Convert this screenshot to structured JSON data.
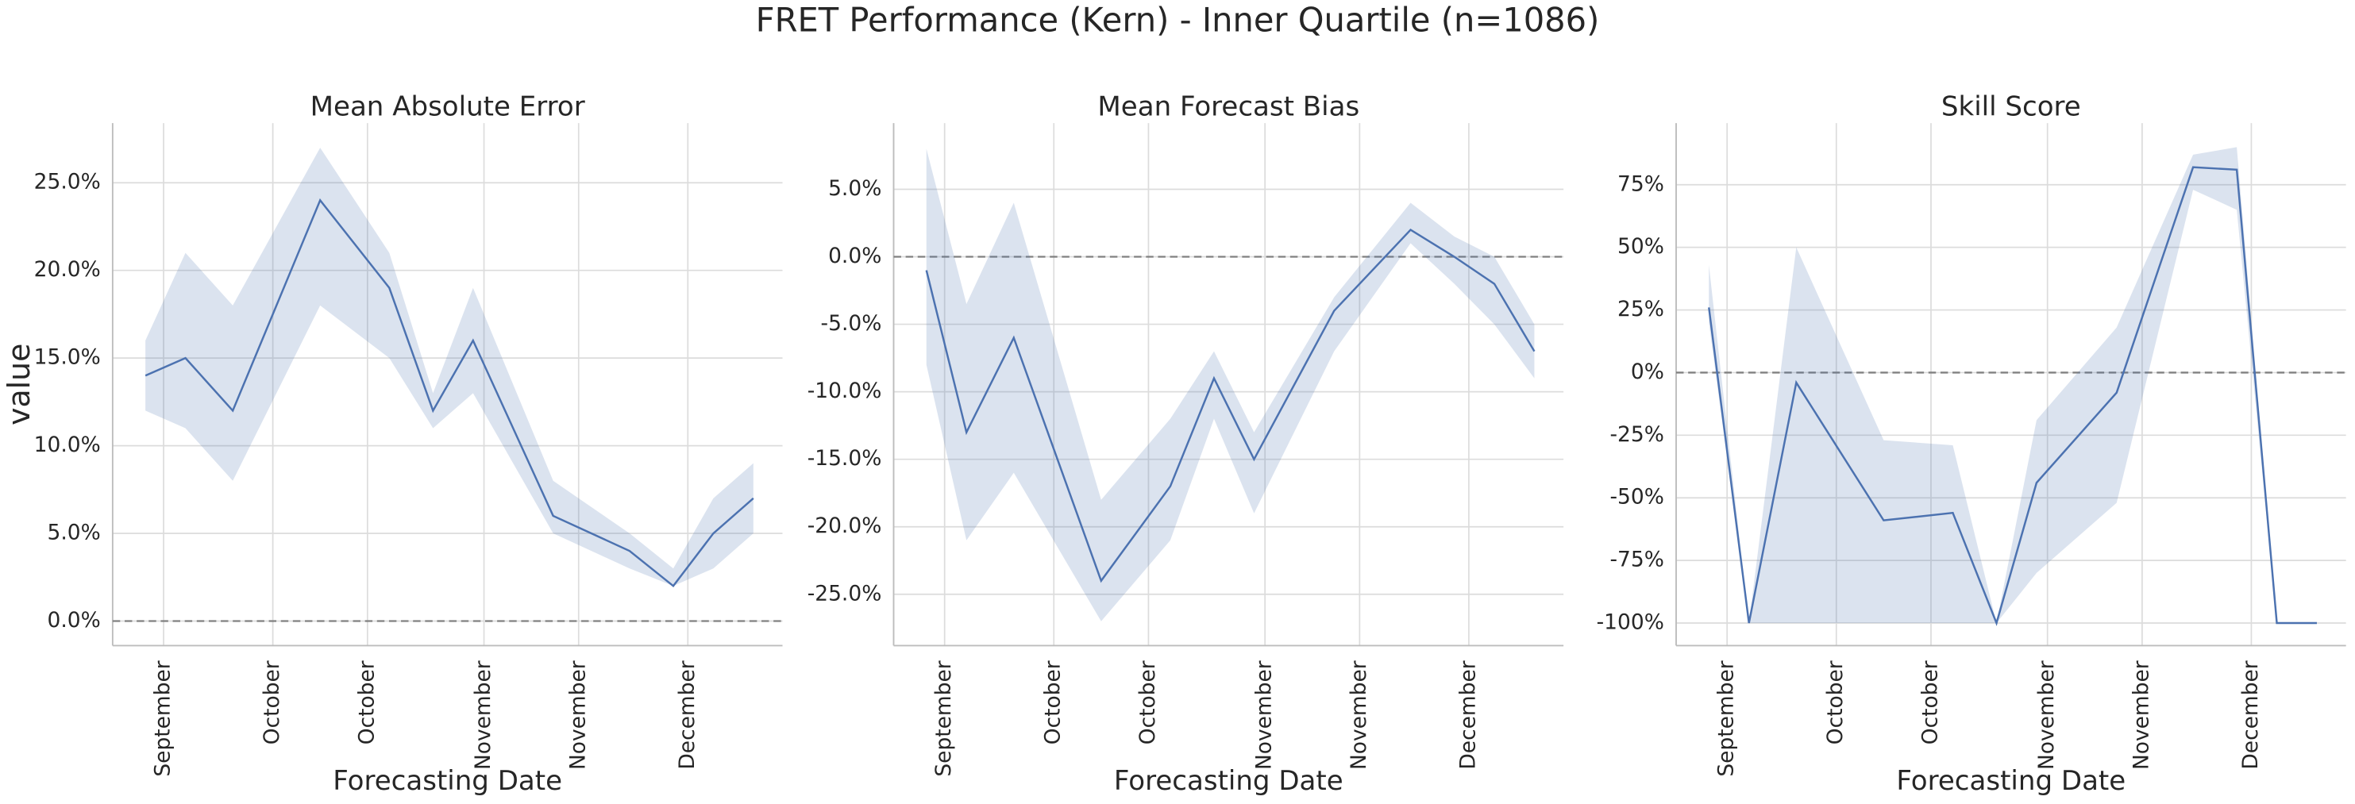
{
  "title": "FRET Performance (Kern) - Inner Quartile (n=1086)",
  "chart_data": [
    {
      "type": "line",
      "title": "Mean Absolute Error",
      "xlabel": "Forecasting Date",
      "ylabel": "value",
      "x": [
        -5,
        6,
        19,
        43,
        62,
        74,
        85,
        107,
        128,
        140,
        151,
        162
      ],
      "xlim": [
        -14,
        170
      ],
      "xticks": [
        {
          "value": 0,
          "label": "September"
        },
        {
          "value": 30,
          "label": "October"
        },
        {
          "value": 56,
          "label": "October"
        },
        {
          "value": 88,
          "label": "November"
        },
        {
          "value": 114,
          "label": "November"
        },
        {
          "value": 144,
          "label": "December"
        }
      ],
      "ylim": [
        -1.4,
        28.4
      ],
      "yticks": [
        {
          "value": 0,
          "label": "0.0%"
        },
        {
          "value": 5,
          "label": "5.0%"
        },
        {
          "value": 10,
          "label": "10.0%"
        },
        {
          "value": 15,
          "label": "15.0%"
        },
        {
          "value": 20,
          "label": "20.0%"
        },
        {
          "value": 25,
          "label": "25.0%"
        }
      ],
      "hline": 0,
      "grid": true,
      "series": [
        {
          "color": "#4c72b0",
          "values": [
            14,
            15,
            12,
            24,
            19,
            12,
            16,
            6,
            4,
            2,
            5,
            7
          ],
          "lower": [
            12,
            11,
            8,
            18,
            15,
            11,
            13,
            5,
            3,
            2,
            3,
            5
          ],
          "upper": [
            16,
            21,
            18,
            27,
            21,
            13,
            19,
            8,
            5,
            3,
            7,
            9
          ]
        }
      ]
    },
    {
      "type": "line",
      "title": "Mean Forecast Bias",
      "xlabel": "Forecasting Date",
      "x": [
        -5,
        6,
        19,
        43,
        62,
        74,
        85,
        107,
        128,
        140,
        151,
        162
      ],
      "xlim": [
        -14,
        170
      ],
      "xticks": [
        {
          "value": 0,
          "label": "September"
        },
        {
          "value": 30,
          "label": "October"
        },
        {
          "value": 56,
          "label": "October"
        },
        {
          "value": 88,
          "label": "November"
        },
        {
          "value": 114,
          "label": "November"
        },
        {
          "value": 144,
          "label": "December"
        }
      ],
      "ylim": [
        -28.8,
        9.9
      ],
      "yticks": [
        {
          "value": -25,
          "label": "-25.0%"
        },
        {
          "value": -20,
          "label": "-20.0%"
        },
        {
          "value": -15,
          "label": "-15.0%"
        },
        {
          "value": -10,
          "label": "-10.0%"
        },
        {
          "value": -5,
          "label": "-5.0%"
        },
        {
          "value": 0,
          "label": "0.0%"
        },
        {
          "value": 5,
          "label": "5.0%"
        }
      ],
      "hline": 0,
      "grid": true,
      "series": [
        {
          "color": "#4c72b0",
          "values": [
            -1,
            -13,
            -6,
            -24,
            -17,
            -9,
            -15,
            -4,
            2,
            0,
            -2,
            -7
          ],
          "lower": [
            -8,
            -21,
            -16,
            -27,
            -21,
            -12,
            -19,
            -7,
            1,
            -2,
            -5,
            -9
          ],
          "upper": [
            8,
            -3.5,
            4,
            -18,
            -12,
            -7,
            -13,
            -3,
            4,
            1.5,
            0,
            -5
          ]
        }
      ]
    },
    {
      "type": "line",
      "title": "Skill Score",
      "xlabel": "Forecasting Date",
      "x": [
        -5,
        6,
        19,
        43,
        62,
        74,
        85,
        107,
        128,
        140,
        151,
        162
      ],
      "xlim": [
        -14,
        170
      ],
      "xticks": [
        {
          "value": 0,
          "label": "September"
        },
        {
          "value": 30,
          "label": "October"
        },
        {
          "value": 56,
          "label": "October"
        },
        {
          "value": 88,
          "label": "November"
        },
        {
          "value": 114,
          "label": "November"
        },
        {
          "value": 144,
          "label": "December"
        }
      ],
      "ylim": [
        -109,
        99.6
      ],
      "yticks": [
        {
          "value": -100,
          "label": "-100%"
        },
        {
          "value": -75,
          "label": "-75%"
        },
        {
          "value": -50,
          "label": "-50%"
        },
        {
          "value": -25,
          "label": "-25%"
        },
        {
          "value": 0,
          "label": "0%"
        },
        {
          "value": 25,
          "label": "25%"
        },
        {
          "value": 50,
          "label": "50%"
        },
        {
          "value": 75,
          "label": "75%"
        }
      ],
      "hline": 0,
      "grid": true,
      "series": [
        {
          "color": "#4c72b0",
          "values": [
            26,
            -100,
            -4,
            -59,
            -56,
            -100,
            -44,
            -8,
            82,
            81,
            -100,
            -100
          ],
          "lower": [
            20,
            -100,
            -100,
            -100,
            -100,
            -100,
            -80,
            -52,
            73,
            65,
            -100,
            -100
          ],
          "upper": [
            43,
            -100,
            50,
            -27,
            -29,
            -100,
            -19,
            18,
            87,
            90,
            -100,
            -100
          ]
        }
      ]
    }
  ]
}
